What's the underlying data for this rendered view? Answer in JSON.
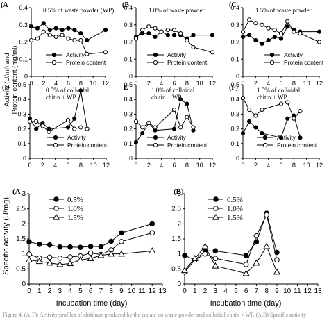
{
  "figure": {
    "shared_ylabel_line1": "Activity (U/ml) and",
    "shared_ylabel_line2": "Protein content (mg/ml)",
    "bottom_ylabel": "Specific activity (U/mg)",
    "bottom_xlabel": "Incubation time (day)",
    "caption_fragment": "Figure 4. (A-F): Activity profiles of chitinase produced by the isolate on waste powder and colloidal chitin + WP. (A,B) Specific activity"
  },
  "chart_data": [
    {
      "id": "A",
      "type": "line",
      "panel_label": "(A",
      "annotation": "0.5% of waste powder (WP)",
      "xlim": [
        0,
        12
      ],
      "ylim": [
        0,
        0.4
      ],
      "xticks": [
        "0",
        "2",
        "4",
        "6",
        "8",
        "10",
        "12"
      ],
      "yticks": [
        "0",
        "0.1",
        "0.2",
        "0.3",
        "0.4"
      ],
      "series": [
        {
          "name": "Activity",
          "marker": "filled-circle",
          "x": [
            0,
            1,
            2,
            3,
            4,
            5,
            6,
            7,
            8,
            9,
            12
          ],
          "y": [
            0.29,
            0.28,
            0.31,
            0.27,
            0.28,
            0.27,
            0.28,
            0.27,
            0.25,
            0.21,
            0.27
          ]
        },
        {
          "name": "Protein content",
          "marker": "open-circle",
          "x": [
            0,
            1,
            2,
            3,
            4,
            5,
            6,
            7,
            8,
            9,
            12
          ],
          "y": [
            0.21,
            0.22,
            0.26,
            0.24,
            0.23,
            0.24,
            0.22,
            0.21,
            0.21,
            0.13,
            0.14
          ]
        }
      ],
      "legend": [
        "Activity",
        "Protein content"
      ]
    },
    {
      "id": "B",
      "type": "line",
      "panel_label": "(B",
      "annotation": "1.0% of waste powder",
      "xlim": [
        0,
        12
      ],
      "ylim": [
        0,
        0.4
      ],
      "xticks": [
        "0",
        "2",
        "4",
        "6",
        "8",
        "10",
        "12"
      ],
      "yticks": [
        "0",
        "0.1",
        "0.2",
        "0.3",
        "0.4"
      ],
      "series": [
        {
          "name": "Activity",
          "marker": "filled-circle",
          "x": [
            0,
            1,
            2,
            3,
            4,
            5,
            6,
            7,
            8,
            9,
            12
          ],
          "y": [
            0.23,
            0.25,
            0.25,
            0.23,
            0.26,
            0.24,
            0.24,
            0.24,
            0.22,
            0.24,
            0.24
          ]
        },
        {
          "name": "Protein content",
          "marker": "open-circle",
          "x": [
            0,
            1,
            2,
            3,
            4,
            5,
            6,
            7,
            8,
            9,
            12
          ],
          "y": [
            0.22,
            0.27,
            0.29,
            0.28,
            0.26,
            0.27,
            0.27,
            0.25,
            0.21,
            0.17,
            0.14
          ]
        }
      ],
      "legend": [
        "Activity",
        "Protein content"
      ]
    },
    {
      "id": "C",
      "type": "line",
      "panel_label": "(C",
      "annotation": "1.5% of waste powder",
      "xlim": [
        0,
        12
      ],
      "ylim": [
        0,
        0.4
      ],
      "xticks": [
        "0",
        "2",
        "4",
        "6",
        "8",
        "10",
        "12"
      ],
      "yticks": [
        "0",
        "0.1",
        "0.2",
        "0.3",
        "0.4"
      ],
      "series": [
        {
          "name": "Activity",
          "marker": "filled-circle",
          "x": [
            0,
            1,
            2,
            3,
            4,
            5,
            6,
            7,
            8,
            9,
            12
          ],
          "y": [
            0.23,
            0.24,
            0.21,
            0.19,
            0.21,
            0.23,
            0.22,
            0.29,
            0.27,
            0.26,
            0.26
          ]
        },
        {
          "name": "Protein content",
          "marker": "open-circle",
          "x": [
            0,
            1,
            2,
            3,
            4,
            5,
            6,
            7,
            8,
            9,
            12
          ],
          "y": [
            0.26,
            0.33,
            0.31,
            0.3,
            0.28,
            0.27,
            0.25,
            0.32,
            0.26,
            0.25,
            0.2
          ]
        }
      ],
      "legend": [
        "Activity",
        "Protein content"
      ]
    },
    {
      "id": "D",
      "type": "line",
      "panel_label": "(D",
      "annotation_line1": "0.5% of colloidal",
      "annotation_line2": "chitin + WP",
      "xlim": [
        0,
        12
      ],
      "ylim": [
        0,
        0.5
      ],
      "xticks": [
        "0",
        "2",
        "4",
        "6",
        "8",
        "10",
        "12"
      ],
      "yticks": [
        "0",
        "0.1",
        "0.2",
        "0.3",
        "0.4",
        "0.5"
      ],
      "series": [
        {
          "name": "Activity",
          "marker": "filled-circle",
          "x": [
            0,
            1,
            2,
            3,
            6,
            7,
            8,
            9
          ],
          "y": [
            0.27,
            0.2,
            0.24,
            0.2,
            0.21,
            0.27,
            0.46,
            0.2
          ]
        },
        {
          "name": "Protein content",
          "marker": "open-circle",
          "x": [
            0,
            1,
            2,
            3,
            6,
            7,
            8,
            9
          ],
          "y": [
            0.25,
            0.25,
            0.22,
            0.18,
            0.26,
            0.2,
            0.21,
            0.2
          ]
        }
      ],
      "legend": [
        "Activity",
        "Protein content"
      ]
    },
    {
      "id": "E",
      "type": "line",
      "panel_label": "E",
      "annotation_line1": "1.0% of colloidal",
      "annotation_line2": "chitin + WP",
      "xlim": [
        0,
        12
      ],
      "ylim": [
        0,
        0.5
      ],
      "xticks": [
        "0",
        "2",
        "4",
        "6",
        "8",
        "10",
        "12"
      ],
      "yticks": [
        "0",
        "0.1",
        "0.2",
        "0.3",
        "0.4",
        "0.5"
      ],
      "series": [
        {
          "name": "Activity",
          "marker": "filled-circle",
          "x": [
            0,
            1,
            2,
            3,
            6,
            7,
            8,
            9
          ],
          "y": [
            0.11,
            0.17,
            0.24,
            0.19,
            0.2,
            0.4,
            0.37,
            0.19
          ]
        },
        {
          "name": "Protein content",
          "marker": "open-circle",
          "x": [
            0,
            1,
            2,
            3,
            6,
            7,
            8,
            9
          ],
          "y": [
            0.25,
            0.21,
            0.24,
            0.21,
            0.33,
            0.21,
            0.28,
            0.21
          ]
        }
      ],
      "legend": [
        "Activity",
        "Protein content"
      ]
    },
    {
      "id": "F",
      "type": "line",
      "panel_label": "(F)",
      "annotation_line1": "1.5% of colloidal",
      "annotation_line2": "chitin + WP",
      "xlim": [
        0,
        12
      ],
      "ylim": [
        0,
        0.5
      ],
      "xticks": [
        "0",
        "2",
        "4",
        "6",
        "8",
        "10",
        "12"
      ],
      "yticks": [
        "0",
        "0.1",
        "0.2",
        "0.3",
        "0.4",
        "0.5"
      ],
      "series": [
        {
          "name": "Activity",
          "marker": "filled-circle",
          "x": [
            0,
            1,
            2,
            3,
            6,
            7,
            8,
            9
          ],
          "y": [
            0.17,
            0.25,
            0.21,
            0.17,
            0.14,
            0.27,
            0.29,
            0.14
          ]
        },
        {
          "name": "Protein content",
          "marker": "open-circle",
          "x": [
            0,
            1,
            2,
            3,
            6,
            7,
            8,
            9
          ],
          "y": [
            0.41,
            0.33,
            0.29,
            0.33,
            0.37,
            0.38,
            0.27,
            0.32
          ]
        }
      ],
      "legend": [
        "Activity",
        "Protein content"
      ]
    },
    {
      "id": "G",
      "type": "line",
      "panel_label": "(A",
      "xlim": [
        0,
        13
      ],
      "ylim": [
        0,
        3
      ],
      "xticks": [
        "0",
        "1",
        "2",
        "3",
        "4",
        "5",
        "6",
        "7",
        "8",
        "9",
        "10",
        "11",
        "12",
        "13"
      ],
      "yticks": [
        "0",
        "0.5",
        "1",
        "1.5",
        "2",
        "2.5",
        "3"
      ],
      "series": [
        {
          "name": "0.5%",
          "marker": "filled-circle",
          "x": [
            0,
            1,
            2,
            3,
            4,
            5,
            6,
            7,
            8,
            9,
            12
          ],
          "y": [
            1.4,
            1.32,
            1.3,
            1.23,
            1.23,
            1.22,
            1.25,
            1.24,
            1.42,
            1.7,
            2.0
          ]
        },
        {
          "name": "1.0%",
          "marker": "open-circle",
          "x": [
            0,
            1,
            2,
            3,
            4,
            5,
            6,
            7,
            8,
            9,
            12
          ],
          "y": [
            0.99,
            0.86,
            0.89,
            0.86,
            0.9,
            0.93,
            1.03,
            0.98,
            1.13,
            1.41,
            1.7
          ]
        },
        {
          "name": "1.5%",
          "marker": "open-triangle",
          "x": [
            0,
            1,
            2,
            3,
            4,
            5,
            6,
            7,
            8,
            9,
            12
          ],
          "y": [
            0.8,
            0.75,
            0.7,
            0.65,
            0.68,
            0.8,
            0.85,
            0.95,
            1.0,
            1.0,
            1.1
          ]
        }
      ],
      "legend": [
        "0.5%",
        "1.0%",
        "1.5%"
      ]
    },
    {
      "id": "H",
      "type": "line",
      "panel_label": "(B)",
      "xlim": [
        0,
        13
      ],
      "ylim": [
        0,
        3
      ],
      "xticks": [
        "0",
        "1",
        "2",
        "3",
        "4",
        "5",
        "6",
        "7",
        "8",
        "9",
        "10",
        "11",
        "12",
        "13"
      ],
      "yticks": [
        "0",
        "0.5",
        "1",
        "1.5",
        "2",
        "2.5",
        "3"
      ],
      "series": [
        {
          "name": "0.5%",
          "marker": "filled-circle",
          "x": [
            0,
            1,
            2,
            3,
            6,
            7,
            8,
            9
          ],
          "y": [
            0.95,
            0.8,
            1.1,
            1.1,
            0.95,
            1.4,
            2.35,
            1.05
          ]
        },
        {
          "name": "1.0%",
          "marker": "open-circle",
          "x": [
            0,
            1,
            2,
            3,
            6,
            7,
            8,
            9
          ],
          "y": [
            0.4,
            0.8,
            1.0,
            0.85,
            0.65,
            1.6,
            2.3,
            0.8
          ]
        },
        {
          "name": "1.5%",
          "marker": "open-triangle",
          "x": [
            0,
            1,
            2,
            3,
            6,
            7,
            8,
            9
          ],
          "y": [
            0.45,
            0.85,
            1.25,
            0.6,
            0.35,
            0.7,
            1.25,
            0.4
          ]
        }
      ],
      "legend": [
        "0.5%",
        "1.0%",
        "1.5%"
      ]
    }
  ]
}
